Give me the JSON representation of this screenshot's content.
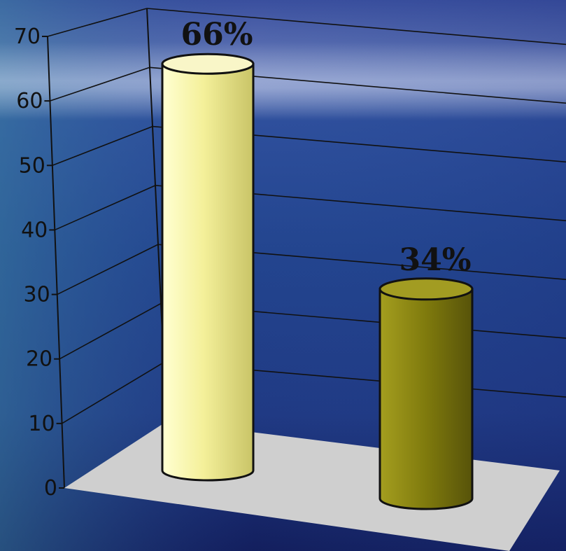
{
  "chart_data": {
    "type": "bar",
    "style": "3d-cylinder",
    "categories": [
      "",
      ""
    ],
    "values": [
      66,
      34
    ],
    "data_labels": [
      "66%",
      "34%"
    ],
    "title": "",
    "xlabel": "",
    "ylabel": "",
    "ylim": [
      0,
      70
    ],
    "yticks": [
      "0",
      "10",
      "20",
      "30",
      "40",
      "50",
      "60",
      "70"
    ],
    "grid": true,
    "legend": "none",
    "colors": {
      "bar_1": "#f5f2a0",
      "bar_2": "#8a8510",
      "floor": "#cfcfcf",
      "background": "#2a3f8f"
    }
  }
}
